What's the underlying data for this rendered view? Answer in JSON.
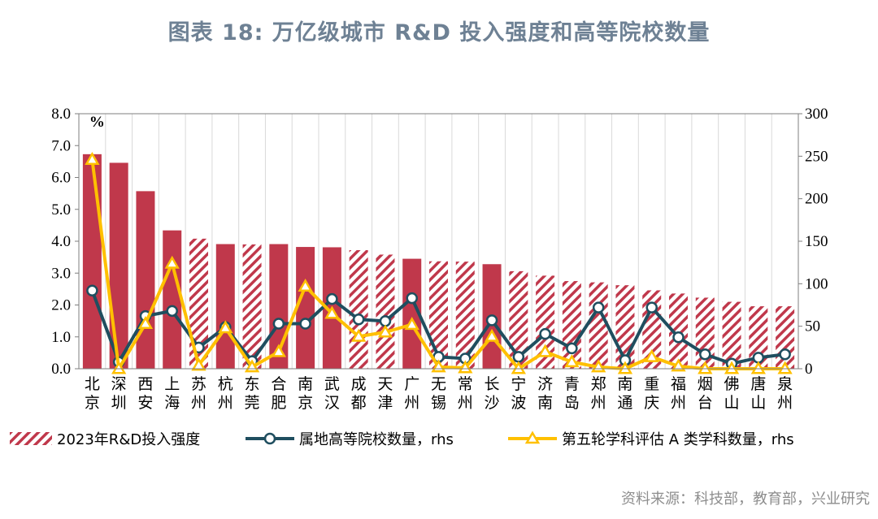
{
  "title": "图表 18: 万亿级城市 R&D 投入强度和高等院校数量",
  "source": "资料来源：科技部，教育部，兴业研究",
  "colors": {
    "bar": "#C0384B",
    "line_universities": "#1F4E5F",
    "line_a_subjects": "#FFC000"
  },
  "chart_data": {
    "type": "bar",
    "unit_label": "%",
    "categories": [
      "北京",
      "深圳",
      "西安",
      "上海",
      "苏州",
      "杭州",
      "东莞",
      "合肥",
      "南京",
      "武汉",
      "成都",
      "天津",
      "广州",
      "无锡",
      "常州",
      "长沙",
      "宁波",
      "济南",
      "青岛",
      "郑州",
      "南通",
      "重庆",
      "福州",
      "烟台",
      "佛山",
      "唐山",
      "泉州"
    ],
    "category_lines": [
      [
        "北",
        "京"
      ],
      [
        "深",
        "圳"
      ],
      [
        "西",
        "安"
      ],
      [
        "上",
        "海"
      ],
      [
        "苏",
        "州"
      ],
      [
        "杭",
        "州"
      ],
      [
        "东",
        "莞"
      ],
      [
        "合",
        "肥"
      ],
      [
        "南",
        "京"
      ],
      [
        "武",
        "汉"
      ],
      [
        "成",
        "都"
      ],
      [
        "天",
        "津"
      ],
      [
        "广",
        "州"
      ],
      [
        "无",
        "锡"
      ],
      [
        "常",
        "州"
      ],
      [
        "长",
        "沙"
      ],
      [
        "宁",
        "波"
      ],
      [
        "济",
        "南"
      ],
      [
        "青",
        "岛"
      ],
      [
        "郑",
        "州"
      ],
      [
        "南",
        "通"
      ],
      [
        "重",
        "庆"
      ],
      [
        "福",
        "州"
      ],
      [
        "烟",
        "台"
      ],
      [
        "佛",
        "山"
      ],
      [
        "唐",
        "山"
      ],
      [
        "泉",
        "州"
      ]
    ],
    "y_left": {
      "min": 0,
      "max": 8,
      "ticks": [
        "0.0",
        "1.0",
        "2.0",
        "3.0",
        "4.0",
        "5.0",
        "6.0",
        "7.0",
        "8.0"
      ]
    },
    "y_right": {
      "min": 0,
      "max": 300,
      "ticks": [
        "0",
        "50",
        "100",
        "150",
        "200",
        "250",
        "300"
      ]
    },
    "series": [
      {
        "name": "2023年R&D投入强度",
        "kind": "bar",
        "axis": "left",
        "values": [
          6.73,
          6.46,
          5.57,
          4.34,
          4.08,
          3.91,
          3.9,
          3.91,
          3.82,
          3.81,
          3.72,
          3.58,
          3.45,
          3.37,
          3.36,
          3.28,
          3.06,
          2.92,
          2.75,
          2.71,
          2.62,
          2.46,
          2.36,
          2.23,
          2.1,
          1.96,
          1.96
        ],
        "hatched": [
          false,
          false,
          false,
          false,
          true,
          false,
          true,
          false,
          false,
          false,
          true,
          true,
          false,
          true,
          true,
          false,
          true,
          true,
          true,
          true,
          true,
          true,
          true,
          true,
          true,
          true,
          true
        ]
      },
      {
        "name": "属地高等院校数量，rhs",
        "kind": "line",
        "axis": "right",
        "values": [
          92,
          8,
          62,
          68,
          25,
          49,
          9,
          53,
          53,
          82,
          58,
          56,
          83,
          14,
          12,
          57,
          14,
          41,
          24,
          72,
          10,
          72,
          37,
          17,
          6,
          13,
          17
        ]
      },
      {
        "name": "第五轮学科评估 A 类学科数量，rhs",
        "kind": "line",
        "axis": "right",
        "values": [
          246,
          0,
          53,
          124,
          4,
          48,
          2,
          20,
          97,
          65,
          38,
          43,
          52,
          2,
          1,
          38,
          0,
          20,
          8,
          2,
          0,
          14,
          3,
          0,
          0,
          0,
          0
        ]
      }
    ],
    "legend": {
      "placement": "bottom"
    },
    "grid": true
  }
}
